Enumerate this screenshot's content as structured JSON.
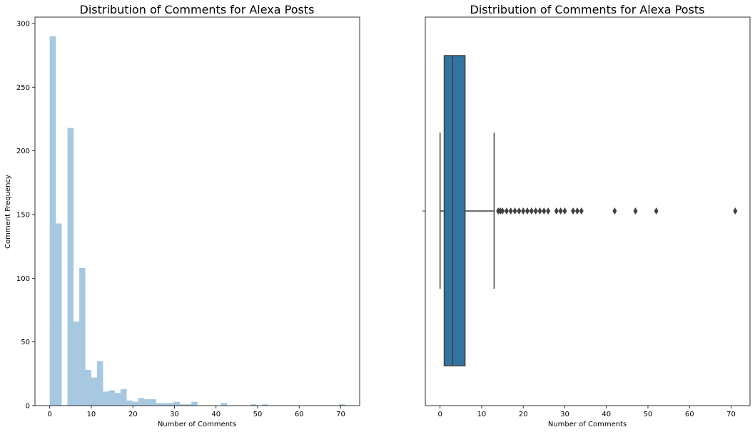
{
  "chart_data": [
    {
      "type": "histogram",
      "title": "Distribution of Comments for Alexa Posts",
      "xlabel": "Number of Comments",
      "ylabel": "Comment Frequency",
      "xlim": [
        -3.55,
        74.55
      ],
      "ylim": [
        0,
        305
      ],
      "xticks": [
        0,
        10,
        20,
        30,
        40,
        50,
        60,
        70
      ],
      "yticks": [
        0,
        50,
        100,
        150,
        200,
        250,
        300
      ],
      "bin_width": 1.42,
      "bin_start": 0,
      "values": [
        290,
        143,
        0,
        218,
        66,
        108,
        28,
        22,
        35,
        11,
        12,
        10,
        13,
        4,
        3,
        6,
        5,
        5,
        2,
        2,
        2,
        3,
        1,
        1,
        3,
        0,
        0,
        0,
        0,
        2,
        0,
        0,
        0,
        0,
        1,
        0,
        1,
        0,
        0,
        0,
        0,
        0,
        0,
        0,
        0,
        0,
        0,
        0,
        0,
        1
      ],
      "color": "#a6c8e0",
      "grid": false,
      "legend": "none"
    },
    {
      "type": "box",
      "title": "Distribution of Comments for Alexa Posts",
      "xlabel": "Number of Comments",
      "ylabel": "",
      "xlim": [
        -3.55,
        74.55
      ],
      "xticks": [
        0,
        10,
        20,
        30,
        40,
        50,
        60,
        70
      ],
      "stats": {
        "whislo": 0,
        "q1": 1,
        "med": 3,
        "q3": 6,
        "whishi": 13
      },
      "fliers": [
        14,
        14.5,
        15,
        16,
        17,
        18,
        19,
        20,
        21,
        22,
        23,
        24,
        25,
        26,
        28,
        29,
        30,
        32,
        33,
        34,
        42,
        47,
        52,
        71
      ],
      "box_color": "#3274a1",
      "line_color": "#3f3f3f",
      "grid": false,
      "legend": "none"
    }
  ]
}
